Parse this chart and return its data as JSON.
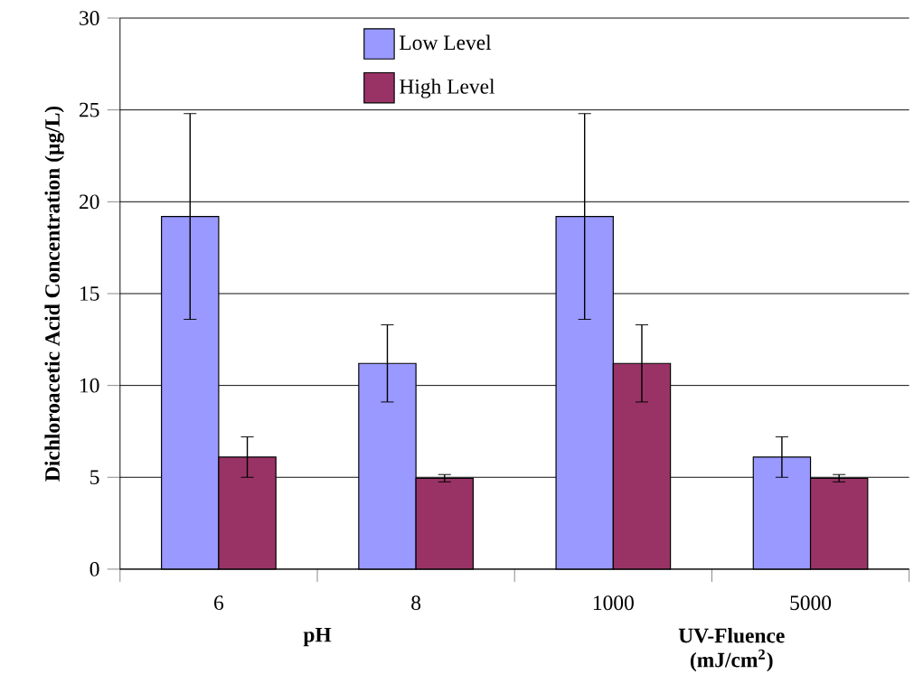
{
  "chart_data": {
    "type": "bar",
    "ylabel": "Dichloroacetic Acid Concentration (µg/L)",
    "categories": [
      "6",
      "8",
      "1000",
      "5000"
    ],
    "series": [
      {
        "name": "Low Level",
        "color": "#9999ff",
        "values": [
          19.2,
          11.2,
          19.2,
          6.1
        ],
        "errors": [
          5.6,
          2.1,
          5.6,
          1.1
        ]
      },
      {
        "name": "High Level",
        "color": "#993366",
        "values": [
          6.1,
          4.95,
          11.2,
          4.95
        ],
        "errors": [
          1.1,
          0.2,
          2.1,
          0.2
        ]
      }
    ],
    "annotations": [
      "pH",
      "UV-Fluence (mJ/cm$^{2}$)"
    ],
    "ylim": [
      0,
      30
    ],
    "yticks": [
      0,
      5,
      10,
      15,
      20,
      25,
      30
    ],
    "grid": "y",
    "legend": "top"
  }
}
